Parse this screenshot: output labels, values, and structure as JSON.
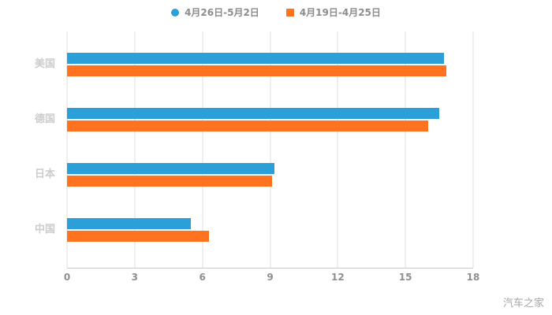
{
  "legend": {
    "items": [
      {
        "label": "4月26日-5月2日",
        "color": "#2B9FD8",
        "shape": "circle"
      },
      {
        "label": "4月19日-4月25日",
        "color": "#FF7220",
        "shape": "square"
      }
    ]
  },
  "watermark": "汽车之家",
  "chart_data": {
    "type": "bar",
    "orientation": "horizontal",
    "title": "",
    "categories": [
      "美国",
      "德国",
      "日本",
      "中国"
    ],
    "series": [
      {
        "name": "4月26日-5月2日",
        "color": "#2B9FD8",
        "values": [
          16.7,
          16.5,
          9.2,
          5.5
        ]
      },
      {
        "name": "4月19日-4月25日",
        "color": "#FF7220",
        "values": [
          16.8,
          16.0,
          9.1,
          6.3
        ]
      }
    ],
    "xlim": [
      0,
      18
    ],
    "xticks": [
      0,
      3,
      6,
      9,
      12,
      15,
      18
    ],
    "grid": true,
    "legend_position": "top"
  }
}
